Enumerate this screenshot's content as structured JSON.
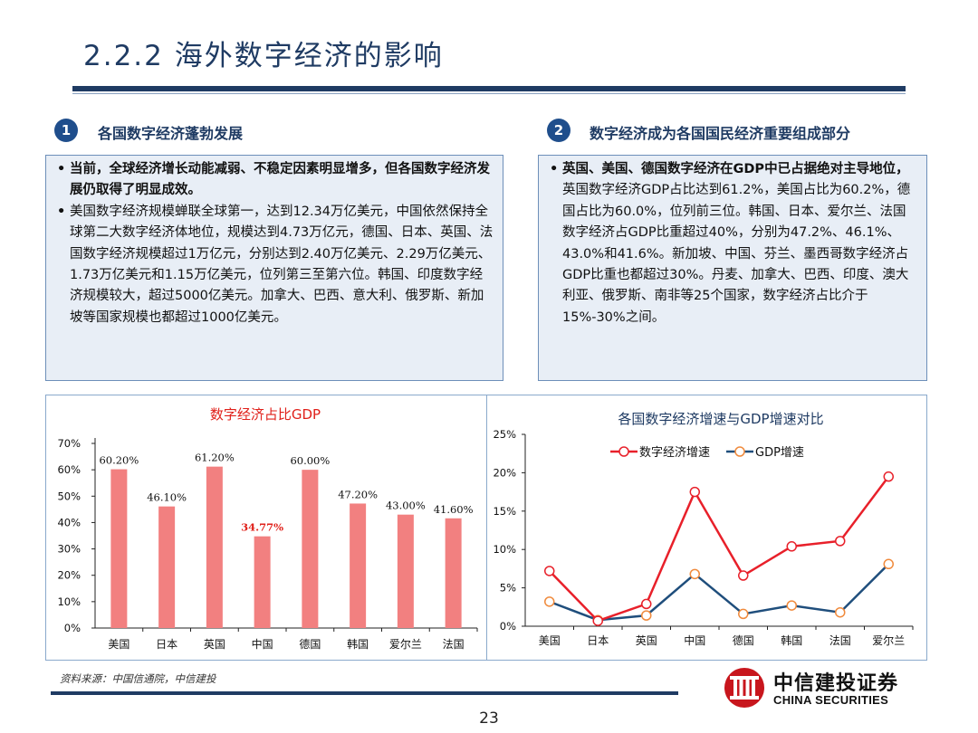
{
  "header": {
    "title": "2.2.2 海外数字经济的影响"
  },
  "sections": [
    {
      "num": "1",
      "heading": "各国数字经济蓬勃发展",
      "bullets": [
        {
          "bold": true,
          "text": "当前，全球经济增长动能减弱、不稳定因素明显增多，但各国数字经济发展仍取得了明显成效。"
        },
        {
          "bold": false,
          "text": "美国数字经济规模蝉联全球第一，达到12.34万亿美元，中国依然保持全球第二大数字经济体地位，规模达到4.73万亿元，德国、日本、英国、法国数字经济规模超过1万亿元，分别达到2.40万亿美元、2.29万亿美元、1.73万亿美元和1.15万亿美元，位列第三至第六位。韩国、印度数字经济规模较大，超过5000亿美元。加拿大、巴西、意大利、俄罗斯、新加坡等国家规模也都超过1000亿美元。"
        }
      ]
    },
    {
      "num": "2",
      "heading": "数字经济成为各国国民经济重要组成部分",
      "bullets": [
        {
          "bold": false,
          "lead": "英国、美国、德国数字经济在GDP中已占据绝对主导地位，",
          "text": "英国数字经济GDP占比达到61.2%，美国占比为60.2%，德国占比为60.0%，位列前三位。韩国、日本、爱尔兰、法国数字经济占GDP比重超过40%，分别为47.2%、46.1%、43.0%和41.6%。新加坡、中国、芬兰、墨西哥数字经济占GDP比重也都超过30%。丹麦、加拿大、巴西、印度、澳大利亚、俄罗斯、南非等25个国家，数字经济占比介于15%-30%之间。"
        }
      ]
    }
  ],
  "chart_data": [
    {
      "type": "bar",
      "title": "数字经济占比GDP",
      "categories": [
        "美国",
        "日本",
        "英国",
        "中国",
        "德国",
        "韩国",
        "爱尔兰",
        "法国"
      ],
      "values": [
        60.2,
        46.1,
        61.2,
        34.77,
        60.0,
        47.2,
        43.0,
        41.6
      ],
      "data_labels": [
        "60.20%",
        "46.10%",
        "61.20%",
        "34.77%",
        "60.00%",
        "47.20%",
        "43.00%",
        "41.60%"
      ],
      "highlight_index": 3,
      "ylim": [
        0,
        70
      ],
      "yticks": [
        "0%",
        "10%",
        "20%",
        "30%",
        "40%",
        "50%",
        "60%",
        "70%"
      ],
      "bar_color": "#f28080",
      "highlight_label_color": "#e0201a",
      "xlabel": "",
      "ylabel": ""
    },
    {
      "type": "line",
      "title": "各国数字经济增速与GDP增速对比",
      "categories": [
        "美国",
        "日本",
        "英国",
        "中国",
        "德国",
        "韩国",
        "法国",
        "爱尔兰"
      ],
      "series": [
        {
          "name": "数字经济增速",
          "color": "#e8202a",
          "values": [
            7.2,
            0.7,
            2.9,
            17.5,
            6.6,
            10.4,
            11.1,
            19.5
          ]
        },
        {
          "name": "GDP增速",
          "color": "#1f4e7c",
          "marker_color": "#f08a3c",
          "values": [
            3.2,
            0.8,
            1.4,
            6.8,
            1.6,
            2.7,
            1.8,
            8.1
          ]
        }
      ],
      "ylim": [
        0,
        25
      ],
      "yticks": [
        "0%",
        "5%",
        "10%",
        "15%",
        "20%",
        "25%"
      ],
      "legend": "top",
      "xlabel": "",
      "ylabel": ""
    }
  ],
  "footer": {
    "source": "资料来源：中国信通院，中信建投",
    "page": "23",
    "logo_cn": "中信建投证券",
    "logo_en": "CHINA SECURITIES",
    "logo_color": "#c8161d"
  }
}
